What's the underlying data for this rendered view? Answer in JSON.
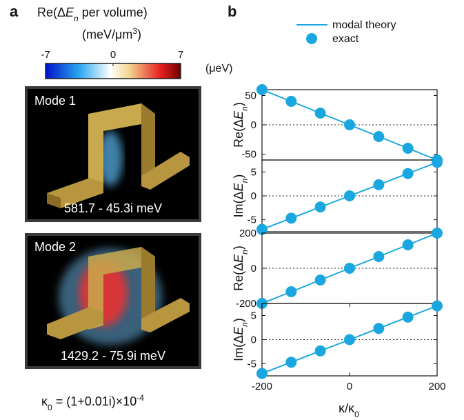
{
  "panel_a": {
    "label": "a",
    "title": {
      "pre": "Re(Δ",
      "var": "E",
      "sub": "n",
      "post": " per volume)"
    },
    "unit": {
      "main": "(meV/μm",
      "sup": "3",
      "close": ")"
    },
    "colorbar": {
      "lim": [
        -7,
        7
      ],
      "ticks": [
        -7,
        0,
        7
      ]
    },
    "modes": [
      {
        "name": "Mode 1",
        "energy": "581.7 - 45.3i meV"
      },
      {
        "name": "Mode 2",
        "energy": "1429.2 - 75.9i meV"
      }
    ],
    "footnote": {
      "sym": "κ",
      "sub": "0",
      "main": " = (1+0.01i)×10",
      "sup": "-4"
    }
  },
  "panel_b": {
    "label": "b",
    "unit": "(μeV)",
    "legend": {
      "line": "modal theory",
      "points": "exact"
    },
    "color": "#1aa7e0",
    "xlabel": {
      "main": "κ/κ",
      "sub": "0"
    }
  },
  "chart_data": [
    {
      "type": "line",
      "ylabel": {
        "pre": "Re(Δ",
        "var": "E",
        "sub": "n",
        "post": ")"
      },
      "x": [
        -200,
        -133.3,
        -66.7,
        0,
        66.7,
        133.3,
        200
      ],
      "values": [
        60,
        40,
        20,
        0,
        -20,
        -40,
        -60
      ],
      "xlim": [
        -200,
        200
      ],
      "ylim": [
        -60,
        60
      ],
      "yticks": [
        -50,
        0,
        50
      ],
      "zero_line": true
    },
    {
      "type": "line",
      "ylabel": {
        "pre": "Im(Δ",
        "var": "E",
        "sub": "n",
        "post": ")"
      },
      "x": [
        -200,
        -133.3,
        -66.7,
        0,
        66.7,
        133.3,
        200
      ],
      "values": [
        -7,
        -4.67,
        -2.33,
        0,
        2.33,
        4.67,
        7
      ],
      "xlim": [
        -200,
        200
      ],
      "ylim": [
        -7.5,
        7.5
      ],
      "yticks": [
        -5,
        0,
        5
      ],
      "zero_line": true
    },
    {
      "type": "line",
      "ylabel": {
        "pre": "Re(Δ",
        "var": "E",
        "sub": "n",
        "post": ")"
      },
      "x": [
        -200,
        -133.3,
        -66.7,
        0,
        66.7,
        133.3,
        200
      ],
      "values": [
        -200,
        -133.3,
        -66.7,
        0,
        66.7,
        133.3,
        200
      ],
      "xlim": [
        -200,
        200
      ],
      "ylim": [
        -200,
        200
      ],
      "yticks": [
        -200,
        0,
        200
      ],
      "zero_line": true
    },
    {
      "type": "line",
      "ylabel": {
        "pre": "Im(Δ",
        "var": "E",
        "sub": "n",
        "post": ")"
      },
      "x": [
        -200,
        -133.3,
        -66.7,
        0,
        66.7,
        133.3,
        200
      ],
      "values": [
        -7,
        -4.67,
        -2.33,
        0,
        2.33,
        4.67,
        7
      ],
      "xlim": [
        -200,
        200
      ],
      "ylim": [
        -7.5,
        7.5
      ],
      "yticks": [
        -5,
        0,
        5
      ],
      "xticks": [
        -200,
        0,
        200
      ],
      "zero_line": true
    }
  ]
}
